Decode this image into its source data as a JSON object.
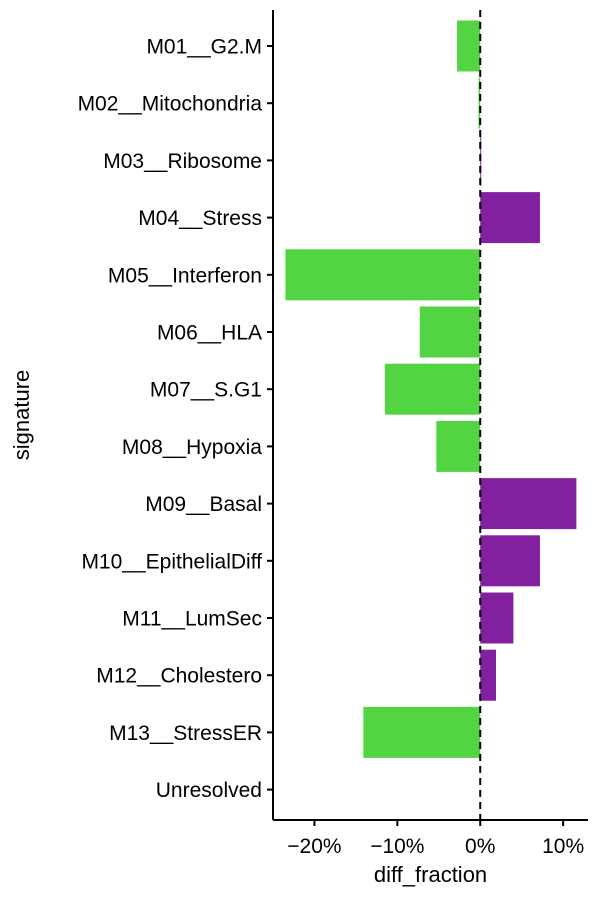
{
  "chart_data": {
    "type": "bar",
    "orientation": "horizontal",
    "xlabel": "diff_fraction",
    "ylabel": "signature",
    "xlim": [
      -0.25,
      0.13
    ],
    "x_ticks": [
      -0.2,
      -0.1,
      0.0,
      0.1
    ],
    "x_tick_labels": [
      "−20%",
      "−10%",
      "0%",
      "10%"
    ],
    "reference_line": {
      "x": 0,
      "style": "dashed"
    },
    "grid": false,
    "legend": "none",
    "colors": {
      "positive": "#8320A0",
      "negative": "#53D443"
    },
    "categories": [
      "M01__G2.M",
      "M02__Mitochondria",
      "M03__Ribosome",
      "M04__Stress",
      "M05__Interferon",
      "M06__HLA",
      "M07__S.G1",
      "M08__Hypoxia",
      "M09__Basal",
      "M10__EpithelialDiff",
      "M11__LumSec",
      "M12__Cholestero",
      "M13__StressER",
      "Unresolved"
    ],
    "values": [
      -0.028,
      -0.002,
      0.001,
      0.072,
      -0.235,
      -0.073,
      -0.115,
      -0.053,
      0.116,
      0.072,
      0.04,
      0.019,
      -0.141,
      0.0
    ]
  }
}
